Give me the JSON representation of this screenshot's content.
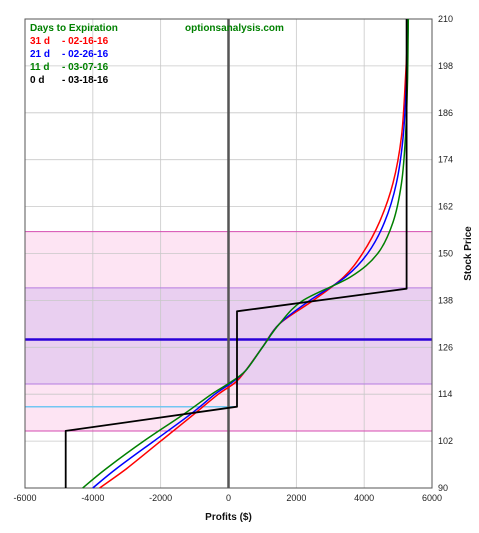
{
  "chart_data": {
    "type": "line",
    "xlabel": "Profits ($)",
    "ylabel": "Stock Price",
    "watermark": "optionsanalysis.com",
    "xlim": [
      -6000,
      6000
    ],
    "ylim": [
      90,
      210
    ],
    "x_ticks": [
      -6000,
      -4000,
      -2000,
      0,
      2000,
      4000,
      6000
    ],
    "y_ticks": [
      90,
      102,
      114,
      126,
      138,
      150,
      162,
      174,
      186,
      198,
      210
    ],
    "grid": true,
    "legend_title": "Days to Expiration",
    "legend_position": "top-left",
    "series": [
      {
        "name": "31 d",
        "date": "- 02-16-16",
        "color": "#ff0000",
        "points": [
          [
            -3800,
            90
          ],
          [
            -3000,
            95
          ],
          [
            -2000,
            102
          ],
          [
            -1000,
            109
          ],
          [
            -300,
            114
          ],
          [
            200,
            117
          ],
          [
            500,
            120
          ],
          [
            1000,
            126
          ],
          [
            1500,
            132
          ],
          [
            2500,
            138
          ],
          [
            3400,
            144
          ],
          [
            3950,
            150
          ],
          [
            4450,
            158
          ],
          [
            4850,
            168
          ],
          [
            5100,
            180
          ],
          [
            5220,
            195
          ],
          [
            5300,
            210
          ]
        ]
      },
      {
        "name": "21 d",
        "date": "- 02-26-16",
        "color": "#0000ff",
        "points": [
          [
            -4000,
            90
          ],
          [
            -3300,
            95
          ],
          [
            -2200,
            102
          ],
          [
            -1100,
            109
          ],
          [
            -400,
            114
          ],
          [
            100,
            117
          ],
          [
            500,
            120
          ],
          [
            1000,
            126
          ],
          [
            1500,
            132
          ],
          [
            2400,
            138
          ],
          [
            3450,
            144
          ],
          [
            4100,
            150
          ],
          [
            4600,
            158
          ],
          [
            4950,
            168
          ],
          [
            5150,
            180
          ],
          [
            5250,
            195
          ],
          [
            5300,
            210
          ]
        ]
      },
      {
        "name": "11 d",
        "date": "- 03-07-16",
        "color": "#008000",
        "points": [
          [
            -4300,
            90
          ],
          [
            -3600,
            95
          ],
          [
            -2500,
            102
          ],
          [
            -1300,
            109
          ],
          [
            -500,
            114
          ],
          [
            50,
            117
          ],
          [
            500,
            120
          ],
          [
            1000,
            126
          ],
          [
            1500,
            132
          ],
          [
            2200,
            138
          ],
          [
            3600,
            144
          ],
          [
            4400,
            150
          ],
          [
            4850,
            158
          ],
          [
            5100,
            168
          ],
          [
            5220,
            180
          ],
          [
            5280,
            195
          ],
          [
            5300,
            210
          ]
        ]
      },
      {
        "name": "0 d",
        "date": "- 03-18-16",
        "color": "#000000",
        "points": [
          [
            -4800,
            90
          ],
          [
            -4800,
            104.6
          ],
          [
            250,
            110.8
          ],
          [
            250,
            135.2
          ],
          [
            5250,
            141
          ],
          [
            5250,
            210
          ]
        ]
      }
    ],
    "bands": [
      {
        "y": [
          104.6,
          155.6
        ],
        "fill": "#fde4f3",
        "stroke": "#d44bb0"
      },
      {
        "y": [
          116.6,
          141.2
        ],
        "fill": "#e9cff0",
        "stroke": "#b57be0"
      }
    ],
    "hlines": [
      {
        "y": 128,
        "color": "#2a00d8"
      },
      {
        "y": 110.8,
        "x_end": 250,
        "color": "#72c6f2"
      }
    ],
    "vline": {
      "x": 0,
      "color": "#555555"
    }
  }
}
